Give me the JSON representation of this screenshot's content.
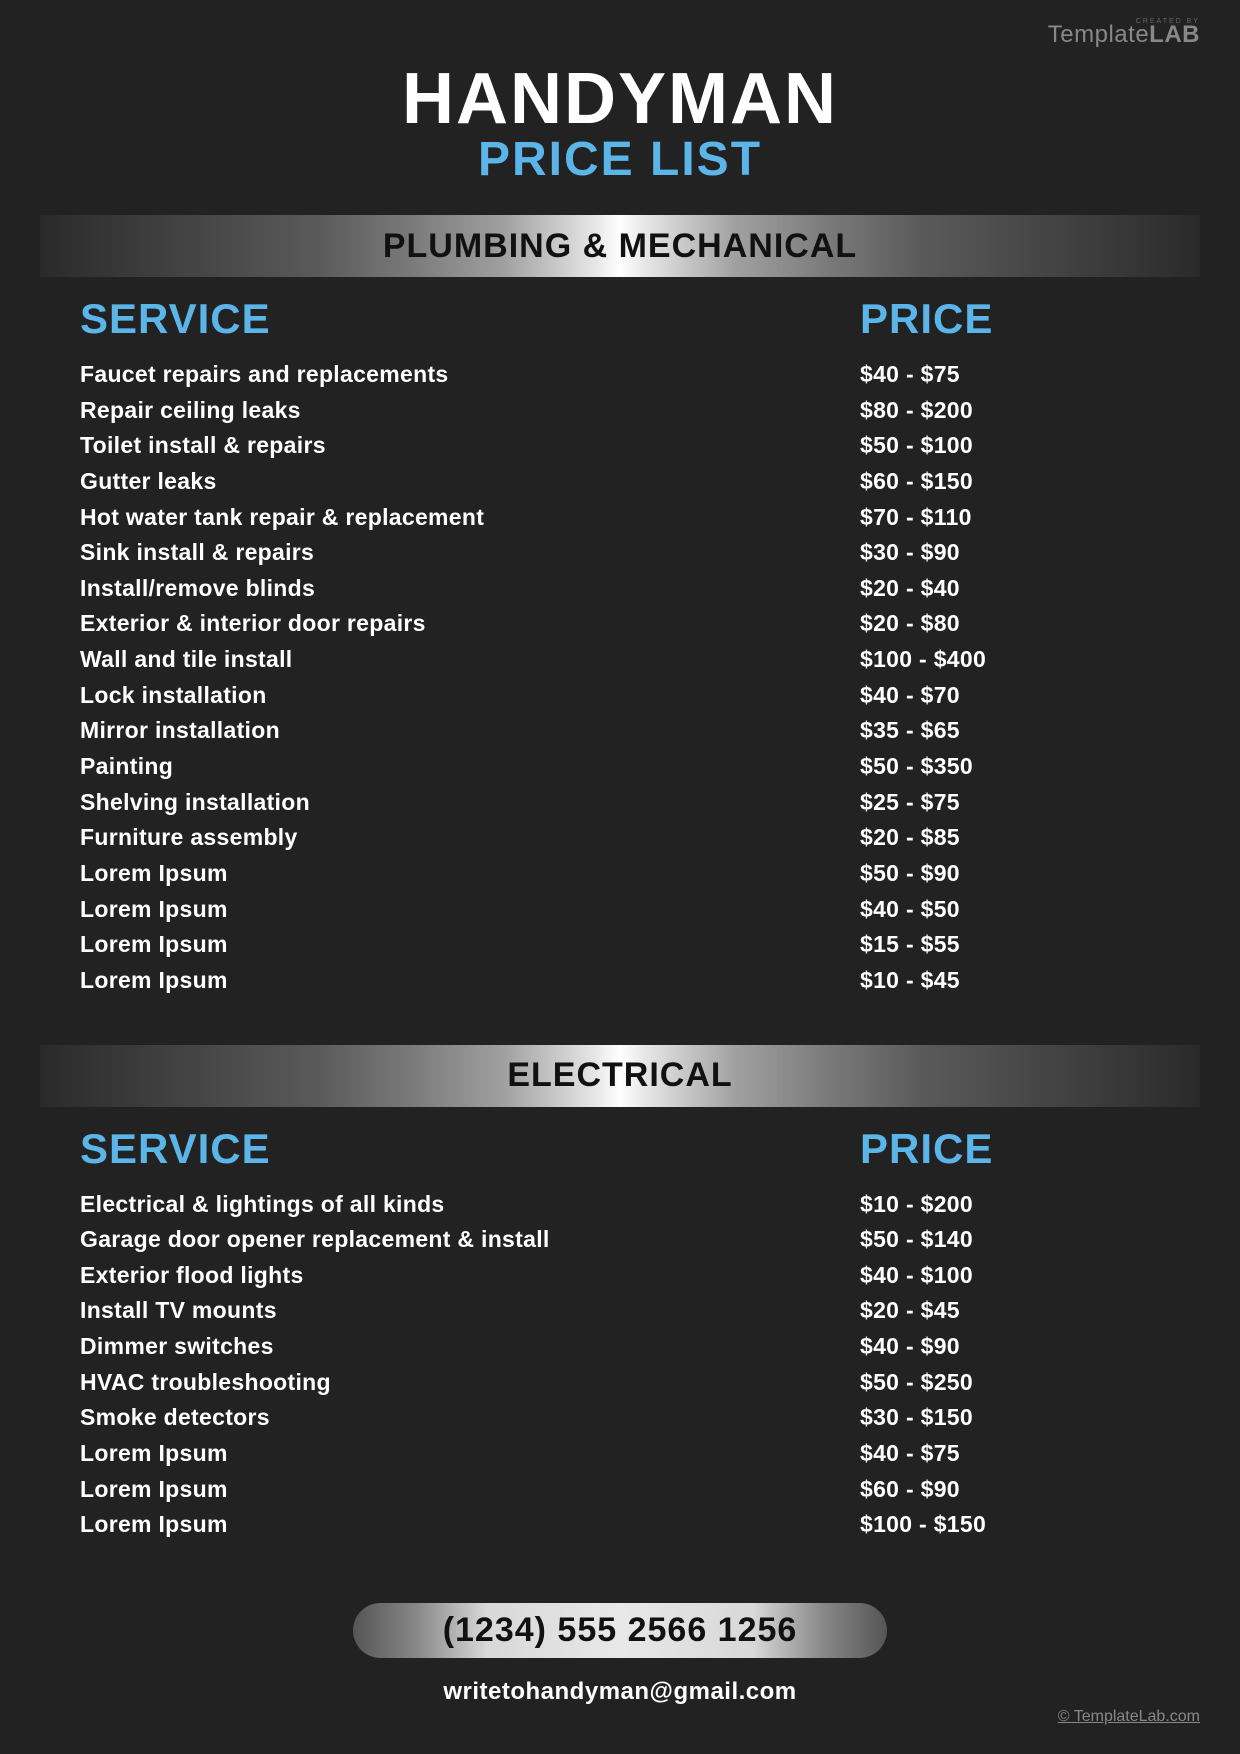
{
  "watermark": {
    "top": "CREATED BY",
    "brand_a": "Template",
    "brand_b": "LAB"
  },
  "header": {
    "title": "HANDYMAN",
    "subtitle": "PRICE LIST"
  },
  "columns": {
    "service": "SERVICE",
    "price": "PRICE"
  },
  "sections": [
    {
      "title": "PLUMBING & MECHANICAL",
      "rows": [
        {
          "service": "Faucet repairs and replacements",
          "price": "$40 - $75"
        },
        {
          "service": "Repair ceiling leaks",
          "price": "$80 - $200"
        },
        {
          "service": "Toilet install & repairs",
          "price": "$50 - $100"
        },
        {
          "service": "Gutter leaks",
          "price": "$60 - $150"
        },
        {
          "service": "Hot water tank repair & replacement",
          "price": "$70 - $110"
        },
        {
          "service": "Sink install & repairs",
          "price": "$30 - $90"
        },
        {
          "service": "Install/remove blinds",
          "price": "$20 - $40"
        },
        {
          "service": "Exterior & interior door repairs",
          "price": "$20 - $80"
        },
        {
          "service": "Wall and tile install",
          "price": "$100 - $400"
        },
        {
          "service": "Lock installation",
          "price": "$40 - $70"
        },
        {
          "service": "Mirror installation",
          "price": "$35 - $65"
        },
        {
          "service": "Painting",
          "price": "$50 - $350"
        },
        {
          "service": "Shelving installation",
          "price": "$25 - $75"
        },
        {
          "service": "Furniture assembly",
          "price": "$20 - $85"
        },
        {
          "service": "Lorem Ipsum",
          "price": "$50 - $90"
        },
        {
          "service": "Lorem Ipsum",
          "price": "$40 - $50"
        },
        {
          "service": "Lorem Ipsum",
          "price": "$15 - $55"
        },
        {
          "service": "Lorem Ipsum",
          "price": "$10 - $45"
        }
      ]
    },
    {
      "title": "ELECTRICAL",
      "rows": [
        {
          "service": "Electrical & lightings of all kinds",
          "price": "$10 - $200"
        },
        {
          "service": "Garage door opener replacement & install",
          "price": "$50 - $140"
        },
        {
          "service": "Exterior flood lights",
          "price": "$40 - $100"
        },
        {
          "service": "Install TV mounts",
          "price": "$20 - $45"
        },
        {
          "service": "Dimmer switches",
          "price": "$40 - $90"
        },
        {
          "service": "HVAC troubleshooting",
          "price": "$50 - $250"
        },
        {
          "service": "Smoke detectors",
          "price": "$30 - $150"
        },
        {
          "service": "Lorem Ipsum",
          "price": "$40 - $75"
        },
        {
          "service": "Lorem Ipsum",
          "price": "$60 - $90"
        },
        {
          "service": "Lorem Ipsum",
          "price": "$100 - $150"
        }
      ]
    }
  ],
  "footer": {
    "phone": "(1234) 555 2566 1256",
    "email": "writetohandyman@gmail.com"
  },
  "copyright": "© TemplateLab.com",
  "colors": {
    "background": "#222222",
    "accent": "#5bb5e8",
    "text": "#ffffff",
    "section_text": "#111111"
  }
}
